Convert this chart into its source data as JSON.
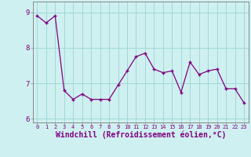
{
  "x": [
    0,
    1,
    2,
    3,
    4,
    5,
    6,
    7,
    8,
    9,
    10,
    11,
    12,
    13,
    14,
    15,
    16,
    17,
    18,
    19,
    20,
    21,
    22,
    23
  ],
  "y": [
    8.9,
    8.7,
    8.9,
    6.8,
    6.55,
    6.7,
    6.55,
    6.55,
    6.55,
    6.95,
    7.35,
    7.75,
    7.85,
    7.4,
    7.3,
    7.35,
    6.75,
    7.6,
    7.25,
    7.35,
    7.4,
    6.85,
    6.85,
    6.45
  ],
  "xlim": [
    -0.5,
    23.5
  ],
  "ylim": [
    5.9,
    9.3
  ],
  "yticks": [
    6,
    7,
    8,
    9
  ],
  "xticks": [
    0,
    1,
    2,
    3,
    4,
    5,
    6,
    7,
    8,
    9,
    10,
    11,
    12,
    13,
    14,
    15,
    16,
    17,
    18,
    19,
    20,
    21,
    22,
    23
  ],
  "xlabel": "Windchill (Refroidissement éolien,°C)",
  "line_color": "#800080",
  "marker": "+",
  "bg_color": "#cff0f0",
  "grid_color": "#a0d8d8",
  "spine_color": "#888888",
  "label_fontsize": 7,
  "tick_fontsize": 6.5
}
